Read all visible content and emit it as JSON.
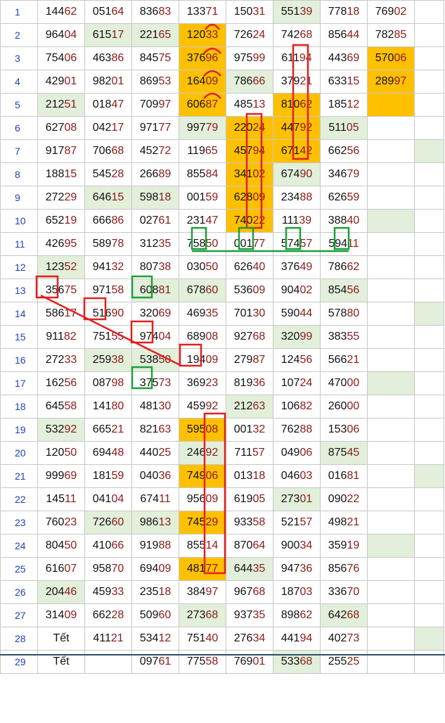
{
  "rows": [
    {
      "num": "1",
      "cells": [
        {
          "v": "14462"
        },
        {
          "v": "05164"
        },
        {
          "v": "83683"
        },
        {
          "v": "13371"
        },
        {
          "v": "15031"
        },
        {
          "v": "55139",
          "bg": "g"
        },
        {
          "v": "77818"
        },
        {
          "v": "76902"
        },
        {
          "v": ""
        }
      ]
    },
    {
      "num": "2",
      "cells": [
        {
          "v": "96404"
        },
        {
          "v": "61517",
          "bg": "g"
        },
        {
          "v": "22165",
          "bg": "g"
        },
        {
          "v": "12033",
          "bg": "o"
        },
        {
          "v": "72624"
        },
        {
          "v": "74268"
        },
        {
          "v": "85644"
        },
        {
          "v": "78285"
        },
        {
          "v": ""
        }
      ]
    },
    {
      "num": "3",
      "cells": [
        {
          "v": "75406"
        },
        {
          "v": "46386"
        },
        {
          "v": "84575"
        },
        {
          "v": "37696",
          "bg": "o"
        },
        {
          "v": "97599"
        },
        {
          "v": "61194"
        },
        {
          "v": "44369"
        },
        {
          "v": "57006",
          "bg": "o"
        },
        {
          "v": ""
        }
      ]
    },
    {
      "num": "4",
      "cells": [
        {
          "v": "42901"
        },
        {
          "v": "98201"
        },
        {
          "v": "86953"
        },
        {
          "v": "16409",
          "bg": "o"
        },
        {
          "v": "78666",
          "bg": "g"
        },
        {
          "v": "37921"
        },
        {
          "v": "63315"
        },
        {
          "v": "28997",
          "bg": "o"
        },
        {
          "v": ""
        }
      ]
    },
    {
      "num": "5",
      "cells": [
        {
          "v": "21251",
          "bg": "g"
        },
        {
          "v": "01847"
        },
        {
          "v": "70997"
        },
        {
          "v": "60687",
          "bg": "o"
        },
        {
          "v": "48513"
        },
        {
          "v": "81062",
          "bg": "o"
        },
        {
          "v": "18512"
        },
        {
          "v": "",
          "bg": "o"
        },
        {
          "v": ""
        }
      ]
    },
    {
      "num": "6",
      "cells": [
        {
          "v": "62708"
        },
        {
          "v": "04217"
        },
        {
          "v": "97177"
        },
        {
          "v": "99779",
          "bg": "g"
        },
        {
          "v": "22024",
          "bg": "o"
        },
        {
          "v": "44792",
          "bg": "o"
        },
        {
          "v": "51105",
          "bg": "g"
        },
        {
          "v": ""
        },
        {
          "v": ""
        }
      ]
    },
    {
      "num": "7",
      "cells": [
        {
          "v": "91787"
        },
        {
          "v": "70668"
        },
        {
          "v": "45272"
        },
        {
          "v": "11965"
        },
        {
          "v": "45794",
          "bg": "o"
        },
        {
          "v": "67142",
          "bg": "o"
        },
        {
          "v": "66256"
        },
        {
          "v": ""
        },
        {
          "v": "",
          "bg": "g"
        }
      ]
    },
    {
      "num": "8",
      "cells": [
        {
          "v": "18815"
        },
        {
          "v": "54528"
        },
        {
          "v": "26689"
        },
        {
          "v": "85584"
        },
        {
          "v": "34102",
          "bg": "o"
        },
        {
          "v": "67490",
          "bg": "g"
        },
        {
          "v": "34679"
        },
        {
          "v": ""
        },
        {
          "v": ""
        }
      ]
    },
    {
      "num": "9",
      "cells": [
        {
          "v": "27229"
        },
        {
          "v": "64615",
          "bg": "g"
        },
        {
          "v": "59818",
          "bg": "g"
        },
        {
          "v": "00159"
        },
        {
          "v": "62809",
          "bg": "o"
        },
        {
          "v": "23488"
        },
        {
          "v": "62659"
        },
        {
          "v": ""
        },
        {
          "v": ""
        }
      ]
    },
    {
      "num": "10",
      "cells": [
        {
          "v": "65219"
        },
        {
          "v": "66686"
        },
        {
          "v": "02761"
        },
        {
          "v": "23147"
        },
        {
          "v": "74022",
          "bg": "o"
        },
        {
          "v": "11139"
        },
        {
          "v": "38840"
        },
        {
          "v": "",
          "bg": "g"
        },
        {
          "v": ""
        }
      ]
    },
    {
      "num": "11",
      "cells": [
        {
          "v": "42695"
        },
        {
          "v": "58978"
        },
        {
          "v": "31235"
        },
        {
          "v": "75850"
        },
        {
          "v": "00177"
        },
        {
          "v": "57457"
        },
        {
          "v": "59411"
        },
        {
          "v": ""
        },
        {
          "v": ""
        }
      ]
    },
    {
      "num": "12",
      "cells": [
        {
          "v": "12352",
          "bg": "g"
        },
        {
          "v": "94132"
        },
        {
          "v": "80738"
        },
        {
          "v": "03050"
        },
        {
          "v": "62640"
        },
        {
          "v": "37649"
        },
        {
          "v": "78662"
        },
        {
          "v": ""
        },
        {
          "v": ""
        }
      ]
    },
    {
      "num": "13",
      "cells": [
        {
          "v": "35675"
        },
        {
          "v": "97158"
        },
        {
          "v": "60881",
          "bg": "g"
        },
        {
          "v": "67860",
          "bg": "g"
        },
        {
          "v": "53609"
        },
        {
          "v": "90402"
        },
        {
          "v": "85456",
          "bg": "g"
        },
        {
          "v": ""
        },
        {
          "v": ""
        }
      ]
    },
    {
      "num": "14",
      "cells": [
        {
          "v": "58617"
        },
        {
          "v": "51690"
        },
        {
          "v": "32069"
        },
        {
          "v": "46935"
        },
        {
          "v": "70130"
        },
        {
          "v": "59044"
        },
        {
          "v": "57880"
        },
        {
          "v": ""
        },
        {
          "v": "",
          "bg": "g"
        }
      ]
    },
    {
      "num": "15",
      "cells": [
        {
          "v": "91182"
        },
        {
          "v": "75155"
        },
        {
          "v": "97404"
        },
        {
          "v": "68908"
        },
        {
          "v": "92768"
        },
        {
          "v": "32099",
          "bg": "g"
        },
        {
          "v": "38355"
        },
        {
          "v": ""
        },
        {
          "v": ""
        }
      ]
    },
    {
      "num": "16",
      "cells": [
        {
          "v": "27233"
        },
        {
          "v": "25938",
          "bg": "g"
        },
        {
          "v": "53850",
          "bg": "g"
        },
        {
          "v": "19409"
        },
        {
          "v": "27987"
        },
        {
          "v": "12456"
        },
        {
          "v": "56621"
        },
        {
          "v": ""
        },
        {
          "v": ""
        }
      ]
    },
    {
      "num": "17",
      "cells": [
        {
          "v": "16256"
        },
        {
          "v": "08798"
        },
        {
          "v": "37573"
        },
        {
          "v": "36923"
        },
        {
          "v": "81936"
        },
        {
          "v": "10724"
        },
        {
          "v": "47000"
        },
        {
          "v": "",
          "bg": "g"
        },
        {
          "v": ""
        }
      ]
    },
    {
      "num": "18",
      "cells": [
        {
          "v": "64558"
        },
        {
          "v": "14180"
        },
        {
          "v": "48130"
        },
        {
          "v": "45992"
        },
        {
          "v": "21263",
          "bg": "g"
        },
        {
          "v": "10682"
        },
        {
          "v": "26000"
        },
        {
          "v": ""
        },
        {
          "v": ""
        }
      ]
    },
    {
      "num": "19",
      "cells": [
        {
          "v": "53292",
          "bg": "g"
        },
        {
          "v": "66521"
        },
        {
          "v": "82163"
        },
        {
          "v": "59508",
          "bg": "o"
        },
        {
          "v": "00132"
        },
        {
          "v": "76288"
        },
        {
          "v": "15306"
        },
        {
          "v": ""
        },
        {
          "v": ""
        }
      ]
    },
    {
      "num": "20",
      "cells": [
        {
          "v": "12050"
        },
        {
          "v": "69448"
        },
        {
          "v": "44025"
        },
        {
          "v": "24692",
          "bg": "g"
        },
        {
          "v": "71157"
        },
        {
          "v": "04906"
        },
        {
          "v": "87545",
          "bg": "g"
        },
        {
          "v": ""
        },
        {
          "v": ""
        }
      ]
    },
    {
      "num": "21",
      "cells": [
        {
          "v": "99969"
        },
        {
          "v": "18159"
        },
        {
          "v": "04036"
        },
        {
          "v": "74906",
          "bg": "o"
        },
        {
          "v": "01318"
        },
        {
          "v": "04603"
        },
        {
          "v": "01681"
        },
        {
          "v": ""
        },
        {
          "v": "",
          "bg": "g"
        }
      ]
    },
    {
      "num": "22",
      "cells": [
        {
          "v": "14511"
        },
        {
          "v": "04104"
        },
        {
          "v": "67411"
        },
        {
          "v": "95609"
        },
        {
          "v": "61905"
        },
        {
          "v": "27301",
          "bg": "g"
        },
        {
          "v": "09022"
        },
        {
          "v": ""
        },
        {
          "v": ""
        }
      ]
    },
    {
      "num": "23",
      "cells": [
        {
          "v": "76023"
        },
        {
          "v": "72660",
          "bg": "g"
        },
        {
          "v": "98613",
          "bg": "g"
        },
        {
          "v": "74529",
          "bg": "o"
        },
        {
          "v": "93358"
        },
        {
          "v": "52157"
        },
        {
          "v": "49821"
        },
        {
          "v": ""
        },
        {
          "v": ""
        }
      ]
    },
    {
      "num": "24",
      "cells": [
        {
          "v": "80450"
        },
        {
          "v": "41066"
        },
        {
          "v": "91988"
        },
        {
          "v": "85514"
        },
        {
          "v": "87064"
        },
        {
          "v": "90034"
        },
        {
          "v": "35919"
        },
        {
          "v": "",
          "bg": "g"
        },
        {
          "v": ""
        }
      ]
    },
    {
      "num": "25",
      "cells": [
        {
          "v": "61607"
        },
        {
          "v": "95870"
        },
        {
          "v": "69409"
        },
        {
          "v": "48177",
          "bg": "o"
        },
        {
          "v": "64435",
          "bg": "g"
        },
        {
          "v": "94736"
        },
        {
          "v": "85676"
        },
        {
          "v": ""
        },
        {
          "v": ""
        }
      ]
    },
    {
      "num": "26",
      "cells": [
        {
          "v": "20446",
          "bg": "g"
        },
        {
          "v": "45933"
        },
        {
          "v": "23518"
        },
        {
          "v": "38497"
        },
        {
          "v": "96768"
        },
        {
          "v": "18703"
        },
        {
          "v": "33670"
        },
        {
          "v": ""
        },
        {
          "v": ""
        }
      ]
    },
    {
      "num": "27",
      "cells": [
        {
          "v": "31409"
        },
        {
          "v": "66228"
        },
        {
          "v": "50960"
        },
        {
          "v": "27368",
          "bg": "g"
        },
        {
          "v": "93735"
        },
        {
          "v": "89862"
        },
        {
          "v": "64268",
          "bg": "g"
        },
        {
          "v": ""
        },
        {
          "v": ""
        }
      ]
    },
    {
      "num": "28",
      "cells": [
        {
          "v": "Tết"
        },
        {
          "v": "41121"
        },
        {
          "v": "53412"
        },
        {
          "v": "75140"
        },
        {
          "v": "27634"
        },
        {
          "v": "44194"
        },
        {
          "v": "40273"
        },
        {
          "v": ""
        },
        {
          "v": "",
          "bg": "g"
        }
      ]
    },
    {
      "num": "29",
      "cells": [
        {
          "v": "Tết"
        },
        {
          "v": ""
        },
        {
          "v": "09761"
        },
        {
          "v": "77558"
        },
        {
          "v": "76901"
        },
        {
          "v": "53368",
          "bg": "g"
        },
        {
          "v": "25525"
        },
        {
          "v": ""
        },
        {
          "v": ""
        }
      ]
    }
  ],
  "colors": {
    "green_fill": "#e2efda",
    "orange_fill": "#ffc000",
    "row_number": "#1f3fbf",
    "digit_dark": "#111111",
    "digit_red": "#8b1a1a",
    "mark_red": "#e02020",
    "mark_green": "#1e9e3a"
  }
}
